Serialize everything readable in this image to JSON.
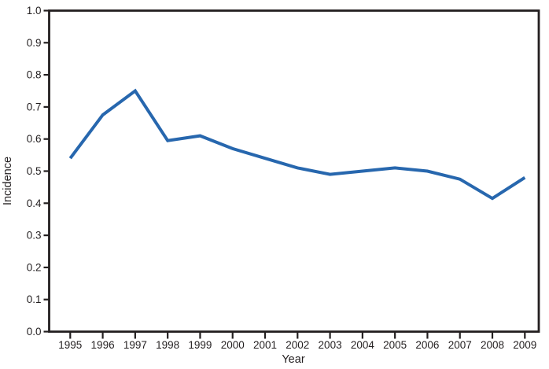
{
  "chart_data": {
    "type": "line",
    "title": "",
    "xlabel": "Year",
    "ylabel": "Incidence",
    "x": [
      1995,
      1996,
      1997,
      1998,
      1999,
      2000,
      2001,
      2002,
      2003,
      2004,
      2005,
      2006,
      2007,
      2008,
      2009
    ],
    "series": [
      {
        "name": "Incidence",
        "values": [
          0.54,
          0.675,
          0.75,
          0.595,
          0.61,
          0.57,
          0.54,
          0.51,
          0.49,
          0.5,
          0.51,
          0.5,
          0.475,
          0.415,
          0.48
        ]
      }
    ],
    "ylim": [
      0.0,
      1.0
    ],
    "ytick_labels": [
      "0.0",
      "0.1",
      "0.2",
      "0.3",
      "0.4",
      "0.5",
      "0.6",
      "0.7",
      "0.8",
      "0.9",
      "1.0"
    ],
    "grid": "off",
    "legend": "none",
    "line_color": "#2767AE",
    "axis_color": "#231F20",
    "text_color": "#231F20",
    "background": "#FFFFFF"
  }
}
